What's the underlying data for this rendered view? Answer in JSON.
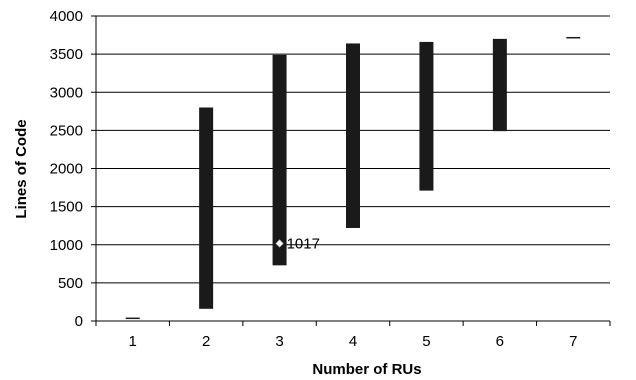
{
  "chart_data": {
    "type": "range-bar",
    "title": "",
    "xlabel": "Number of RUs",
    "ylabel": "Lines of Code",
    "categories": [
      "1",
      "2",
      "3",
      "4",
      "5",
      "6",
      "7"
    ],
    "ranges": [
      {
        "x": "1",
        "low": 30,
        "high": 45
      },
      {
        "x": "2",
        "low": 160,
        "high": 2800
      },
      {
        "x": "3",
        "low": 730,
        "high": 3490
      },
      {
        "x": "4",
        "low": 1220,
        "high": 3640
      },
      {
        "x": "5",
        "low": 1710,
        "high": 3660
      },
      {
        "x": "6",
        "low": 2490,
        "high": 3700
      },
      {
        "x": "7",
        "low": 3710,
        "high": 3725
      }
    ],
    "annotation": {
      "x": "3",
      "y": 1017,
      "label": "1017"
    },
    "ylim": [
      0,
      4000
    ],
    "yticks": [
      0,
      500,
      1000,
      1500,
      2000,
      2500,
      3000,
      3500,
      4000
    ],
    "grid": "horizontal",
    "legend": "none",
    "bar_color": "#1a1a1a",
    "marker_color": "#ffffff"
  }
}
